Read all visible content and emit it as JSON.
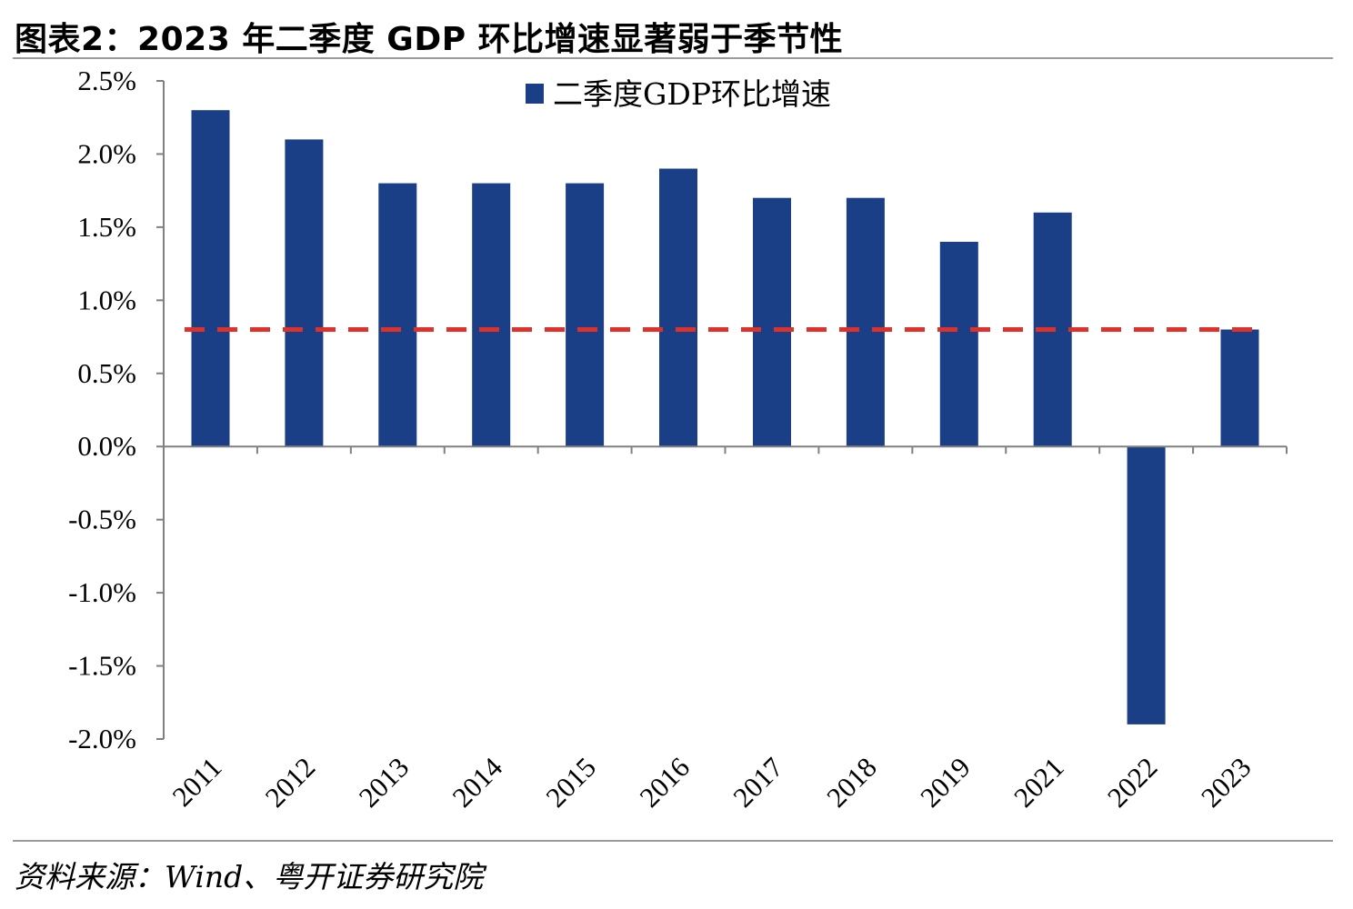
{
  "header": {
    "title": "图表2：2023 年二季度 GDP 环比增速显著弱于季节性"
  },
  "footer": {
    "source": "资料来源：Wind、粤开证券研究院"
  },
  "colors": {
    "bar": "#1b3f86",
    "reference_line": "#e0302a",
    "axis": "#808080",
    "rule": "#9a9a9a"
  },
  "chart_data": {
    "type": "bar",
    "title": "2023 年二季度 GDP 环比增速显著弱于季节性",
    "categories": [
      "2011",
      "2012",
      "2013",
      "2014",
      "2015",
      "2016",
      "2017",
      "2018",
      "2019",
      "2021",
      "2022",
      "2023"
    ],
    "series": [
      {
        "name": "二季度GDP环比增速",
        "values": [
          2.3,
          2.1,
          1.8,
          1.8,
          1.8,
          1.9,
          1.7,
          1.7,
          1.4,
          1.6,
          -1.9,
          0.8
        ]
      }
    ],
    "reference_line": {
      "value": 0.8,
      "style": "dashed",
      "color": "#e0302a"
    },
    "yticks": [
      "2.5%",
      "2.0%",
      "1.5%",
      "1.0%",
      "0.5%",
      "0.0%",
      "-0.5%",
      "-1.0%",
      "-1.5%",
      "-2.0%"
    ],
    "ytick_values": [
      2.5,
      2.0,
      1.5,
      1.0,
      0.5,
      0.0,
      -0.5,
      -1.0,
      -1.5,
      -2.0
    ],
    "ylim": [
      -2.0,
      2.5
    ],
    "xlabel": "",
    "ylabel": "",
    "legend": {
      "position": "top-center"
    },
    "grid": false
  }
}
